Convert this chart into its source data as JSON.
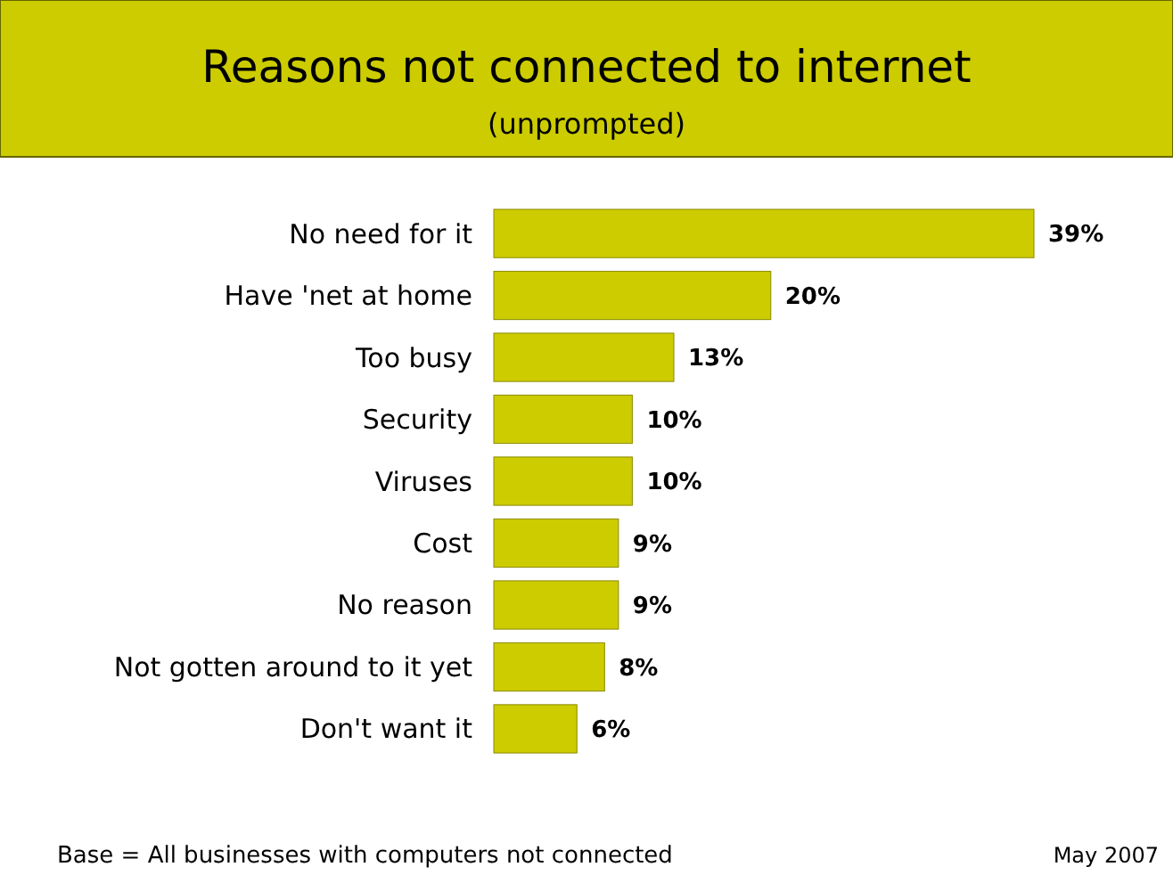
{
  "chart_data": {
    "type": "bar",
    "orientation": "horizontal",
    "title": "Reasons not connected to internet",
    "subtitle": "(unprompted)",
    "categories": [
      "No need for it",
      "Have 'net at home",
      "Too busy",
      "Security",
      "Viruses",
      "Cost",
      "No reason",
      "Not gotten around to it yet",
      "Don't want it"
    ],
    "values": [
      39,
      20,
      13,
      10,
      10,
      9,
      9,
      8,
      6
    ],
    "value_labels": [
      "39%",
      "20%",
      "13%",
      "10%",
      "10%",
      "9%",
      "9%",
      "8%",
      "6%"
    ],
    "color": "#cccc00",
    "annotations": [
      "Base = All businesses with computers not connected",
      "May 2007"
    ]
  }
}
